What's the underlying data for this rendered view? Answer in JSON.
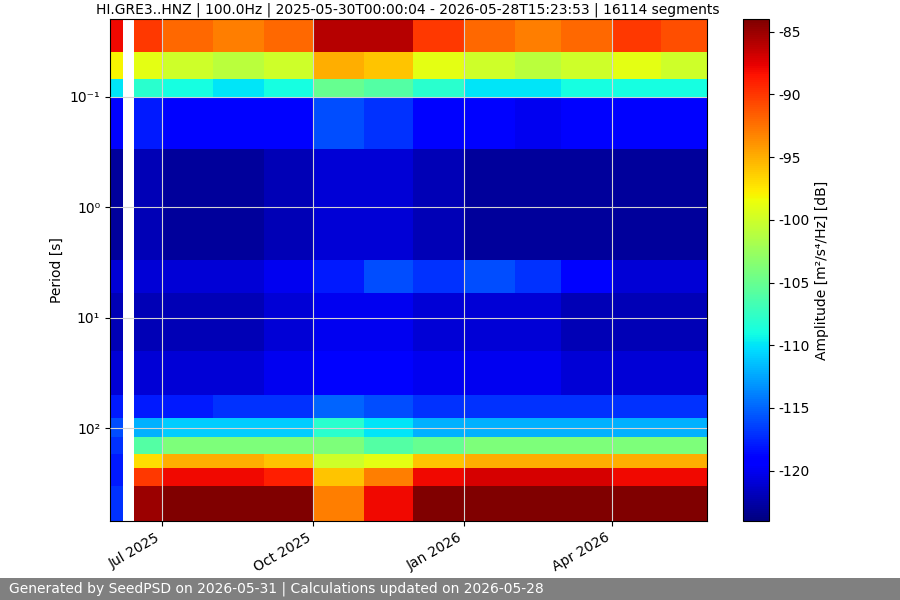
{
  "chart_data": {
    "type": "heatmap",
    "title": "HI.GRE3..HNZ | 100.0Hz | 2025-05-30T00:00:04 - 2026-05-28T15:23:53 | 16114 segments",
    "y_label": "Period [s]",
    "colorbar_label": "Amplitude [m²/s⁴/Hz] [dB]",
    "footer": "Generated by SeedPSD on 2026-05-31 | Calculations updated on 2026-05-28",
    "log": "y",
    "grid": true,
    "color": "jet",
    "xlim": [
      "2025-05-30T00:00:04",
      "2026-05-28T15:23:53"
    ],
    "xticks": [
      {
        "value": "2025-07-01",
        "label": "Jul 2025"
      },
      {
        "value": "2025-10-01",
        "label": "Oct 2025"
      },
      {
        "value": "2026-01-01",
        "label": "Jan 2026"
      },
      {
        "value": "2026-04-01",
        "label": "Apr 2026"
      }
    ],
    "ylim": [
      686,
      0.02
    ],
    "yticks": [
      {
        "value": 0.1,
        "label": "10⁻¹"
      },
      {
        "value": 1,
        "label": "10⁰"
      },
      {
        "value": 10,
        "label": "10¹"
      },
      {
        "value": 100,
        "label": "10²"
      }
    ],
    "clim": [
      -124,
      -84
    ],
    "cticks": [
      -120,
      -115,
      -110,
      -105,
      -100,
      -95,
      -90,
      -85
    ],
    "time_edges": [
      "2025-05-30T00:00:04",
      "2025-06-07",
      "2025-06-14",
      "2025-07-01",
      "2025-08-01",
      "2025-09-01",
      "2025-10-01",
      "2025-11-01",
      "2025-12-01",
      "2026-01-01",
      "2026-02-01",
      "2026-03-01",
      "2026-04-01",
      "2026-05-01",
      "2026-05-28T15:23:53"
    ],
    "period_edges": [
      0.02,
      0.04,
      0.07,
      0.1,
      0.3,
      3,
      6,
      20,
      50,
      80,
      120,
      170,
      230,
      330,
      686
    ],
    "cells": [
      [
        -88,
        null,
        -90,
        -92,
        -93,
        -92,
        -86,
        -86,
        -90,
        -92,
        -93,
        -92,
        -90,
        -91
      ],
      [
        -98,
        null,
        -99,
        -100,
        -101,
        -100,
        -95,
        -96,
        -99,
        -100,
        -101,
        -100,
        -99,
        -100
      ],
      [
        -110,
        null,
        -108,
        -109,
        -110,
        -109,
        -105,
        -106,
        -108,
        -110,
        -110,
        -109,
        -109,
        -109
      ],
      [
        -119,
        null,
        -118,
        -119,
        -119,
        -119,
        -116,
        -117,
        -119,
        -119,
        -120,
        -119,
        -119,
        -119
      ],
      [
        -123,
        null,
        -122,
        -123,
        -123,
        -122,
        -121,
        -121,
        -122,
        -123,
        -123,
        -123,
        -123,
        -123
      ],
      [
        -121,
        null,
        -121,
        -121,
        -121,
        -120,
        -118,
        -116,
        -117,
        -116,
        -117,
        -119,
        -121,
        -121
      ],
      [
        -122,
        null,
        -122,
        -122,
        -122,
        -121,
        -120,
        -120,
        -121,
        -121,
        -121,
        -122,
        -122,
        -122
      ],
      [
        -121,
        null,
        -121,
        -121,
        -121,
        -120,
        -119,
        -119,
        -120,
        -120,
        -120,
        -121,
        -121,
        -121
      ],
      [
        -118,
        null,
        -118,
        -118,
        -117,
        -117,
        -115,
        -116,
        -117,
        -117,
        -117,
        -117,
        -117,
        -117
      ],
      [
        -116,
        null,
        -112,
        -111,
        -111,
        -111,
        -108,
        -110,
        -112,
        -112,
        -112,
        -112,
        -112,
        -112
      ],
      [
        -117,
        null,
        -106,
        -104,
        -104,
        -104,
        -104,
        -106,
        -105,
        -104,
        -104,
        -104,
        -104,
        -104
      ],
      [
        -118,
        null,
        -97,
        -95,
        -95,
        -96,
        -100,
        -99,
        -96,
        -95,
        -95,
        -95,
        -95,
        -95
      ],
      [
        -118,
        null,
        -90,
        -88,
        -88,
        -89,
        -96,
        -93,
        -88,
        -87,
        -87,
        -87,
        -88,
        -88
      ],
      [
        -117,
        null,
        -85,
        -83,
        -83,
        -84,
        -93,
        -88,
        -83,
        -83,
        -83,
        -83,
        -83,
        -83
      ]
    ]
  }
}
